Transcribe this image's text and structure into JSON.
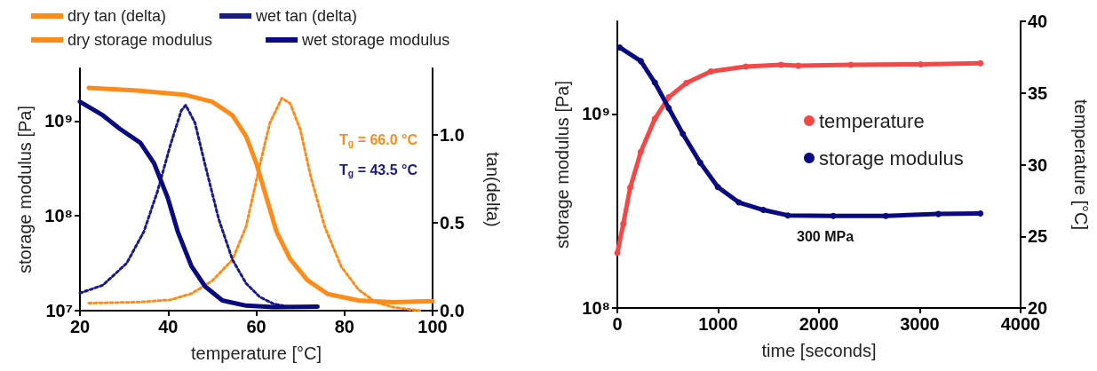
{
  "chart_data": [
    {
      "type": "line",
      "xlabel": "temperature [°C]",
      "ylabel": "storage modulus [Pa]",
      "y2label": "tan(delta)",
      "xlim": [
        20,
        100
      ],
      "xticks": [
        20,
        40,
        60,
        80,
        100
      ],
      "ylim": [
        10000000,
        3600000000
      ],
      "yticks": [
        {
          "value": 10000000,
          "label": "10⁷"
        },
        {
          "value": 100000000,
          "label": "10⁸"
        },
        {
          "value": 1000000000,
          "label": "10⁹"
        }
      ],
      "y2lim": [
        0,
        1.38
      ],
      "y2ticks": [
        {
          "value": 0,
          "label": "0.0"
        },
        {
          "value": 0.5,
          "label": "0.5"
        },
        {
          "value": 1,
          "label": "1.0"
        }
      ],
      "log": "y",
      "grid": false,
      "legend": "top left",
      "marker": "none",
      "annotations": [
        "T$_{g}$ = 66.0 °C",
        "T$_{g}$ = 43.5 °C"
      ],
      "series": [
        {
          "name": "dry tan (delta)",
          "color": "#ff8c1a",
          "axis": "y2",
          "line_style": "dotted",
          "x": [
            22,
            33,
            40.6,
            45.3,
            50,
            54.6,
            57.7,
            60.8,
            63.1,
            65.8,
            67.7,
            70,
            72.4,
            75.5,
            79.3,
            83.2,
            87,
            90.9,
            97.1
          ],
          "values": [
            0.043,
            0.048,
            0.062,
            0.097,
            0.17,
            0.29,
            0.48,
            0.83,
            1.07,
            1.21,
            1.18,
            1.03,
            0.76,
            0.48,
            0.25,
            0.12,
            0.05,
            0.02,
            0.0
          ]
        },
        {
          "name": "wet tan (delta)",
          "color": "#1a1a8c",
          "axis": "y2",
          "line_style": "dotted",
          "x": [
            20,
            25.2,
            30.6,
            34.5,
            37.6,
            40.6,
            43,
            44,
            46.1,
            48.4,
            51.5,
            54.6,
            57.7,
            60.8,
            63.9,
            67.7
          ],
          "values": [
            0.1,
            0.145,
            0.27,
            0.45,
            0.68,
            0.95,
            1.14,
            1.17,
            1.07,
            0.83,
            0.52,
            0.29,
            0.155,
            0.078,
            0.039,
            0.02
          ]
        },
        {
          "name": "dry storage modulus",
          "color": "#ff8c1a",
          "line_style": "solid",
          "x": [
            22,
            33,
            43.7,
            50,
            54.6,
            57.7,
            60,
            62.3,
            64.6,
            67.7,
            71.6,
            76.2,
            83.2,
            90.9,
            100
          ],
          "values": [
            2240000000,
            2100000000,
            1900000000,
            1600000000,
            1150000000,
            690000000,
            360000000,
            156000000,
            68000000,
            35000000,
            21000000,
            15000000,
            12800000,
            12300000,
            12600000
          ]
        },
        {
          "name": "wet storage modulus",
          "color": "#0a0a80",
          "line_style": "solid",
          "x": [
            20,
            25.2,
            29,
            33.7,
            36.8,
            39.9,
            42.2,
            45.3,
            48.4,
            52.3,
            57.7,
            63.9,
            73.9
          ],
          "values": [
            1600000000,
            1150000000,
            830000000,
            590000000,
            360000000,
            156000000,
            68000000,
            29500000,
            18000000,
            12800000,
            11300000,
            10900000,
            11000000
          ]
        }
      ]
    },
    {
      "type": "line",
      "xlabel": "time [seconds]",
      "ylabel": "storage modulus [Pa]",
      "y2label": "temperature [°C]",
      "xlim": [
        0,
        4000
      ],
      "xticks": [
        0,
        1000,
        2000,
        3000,
        4000
      ],
      "ylim": [
        100000000,
        3000000000
      ],
      "yticks": [
        {
          "value": 100000000,
          "label": "10⁸"
        },
        {
          "value": 1000000000,
          "label": "10⁹"
        }
      ],
      "y2lim": [
        20,
        40
      ],
      "y2ticks": [
        20,
        25,
        30,
        35,
        40
      ],
      "log": "y",
      "grid": false,
      "legend": "right",
      "marker": "circle",
      "annotations": [
        "300 MPa"
      ],
      "series": [
        {
          "name": "temperature",
          "color": "#f24848",
          "axis": "y2",
          "x": [
            0,
            59,
            128,
            233,
            372,
            510,
            684,
            927,
            1274,
            1622,
            1795,
            2316,
            3010,
            3601
          ],
          "values": [
            23.84,
            25.86,
            28.4,
            30.9,
            33.2,
            34.7,
            35.7,
            36.5,
            36.84,
            36.97,
            36.9,
            36.97,
            37.0,
            37.07
          ]
        },
        {
          "name": "storage modulus",
          "color": "#0a0a80",
          "x": [
            24,
            233,
            372,
            510,
            649,
            823,
            997,
            1205,
            1448,
            1691,
            2142,
            2663,
            3184,
            3601
          ],
          "values": [
            2200000000,
            1870000000,
            1450000000,
            1070000000,
            790000000,
            560000000,
            420000000,
            350000000,
            320000000,
            300000000,
            298000000,
            298000000,
            305000000,
            307000000
          ]
        }
      ]
    }
  ]
}
